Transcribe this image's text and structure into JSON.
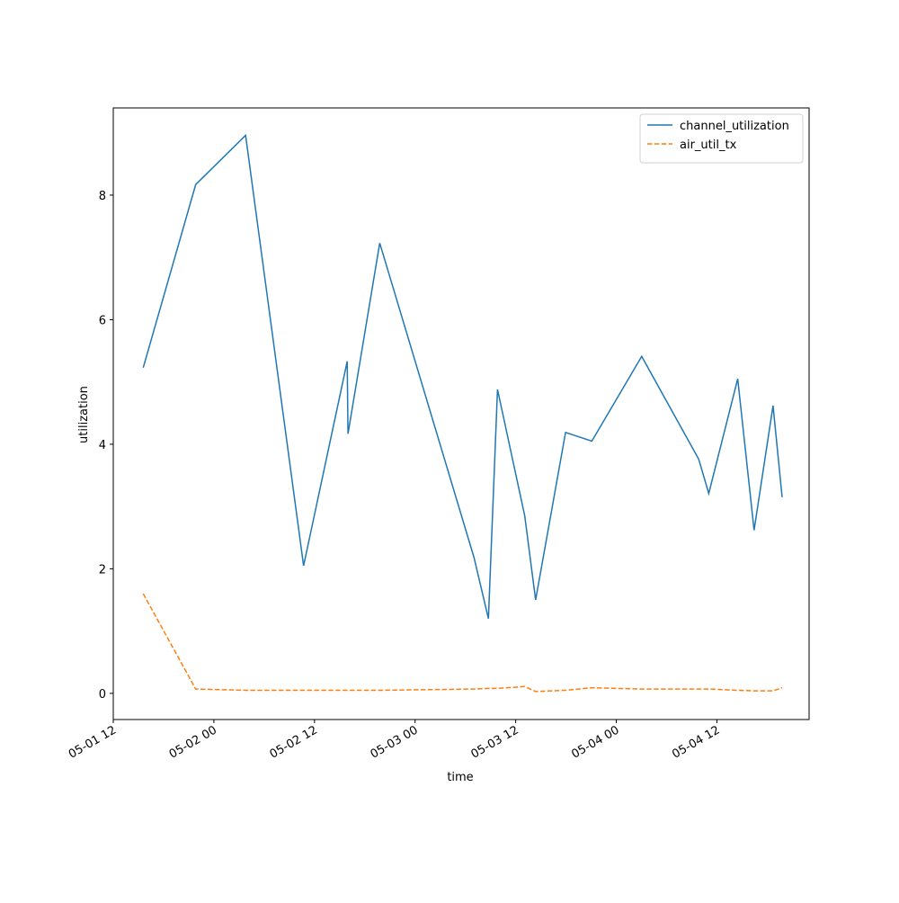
{
  "chart_data": {
    "type": "line",
    "xlabel": "time",
    "ylabel": "utilization",
    "x": [
      "05-01 15:34",
      "05-01 21:50",
      "05-02 03:47",
      "05-02 10:42",
      "05-02 15:54",
      "05-02 16:00",
      "05-02 19:47",
      "05-03 07:02",
      "05-03 08:45",
      "05-03 09:50",
      "05-03 13:05",
      "05-03 14:23",
      "05-03 17:57",
      "05-03 21:05",
      "05-04 03:02",
      "05-04 09:50",
      "05-04 11:02",
      "05-04 14:29",
      "05-04 16:26",
      "05-04 18:42",
      "05-04 19:47",
      "05-04 20:00"
    ],
    "series": [
      {
        "name": "channel_utilization",
        "color": "#1f77b4",
        "dash": "solid",
        "values": [
          5.23,
          8.17,
          8.96,
          2.05,
          5.33,
          4.17,
          7.23,
          2.18,
          1.2,
          4.88,
          2.85,
          1.5,
          4.19,
          4.05,
          5.41,
          3.76,
          3.21,
          5.05,
          2.62,
          4.62,
          3.15,
          null
        ]
      },
      {
        "name": "air_util_tx",
        "color": "#ff7f0e",
        "dash": "dashed",
        "values": [
          1.6,
          0.07,
          0.05,
          0.05,
          0.05,
          0.05,
          0.05,
          0.07,
          0.08,
          0.08,
          0.11,
          0.03,
          0.05,
          0.09,
          0.07,
          0.07,
          0.07,
          0.05,
          0.04,
          0.04,
          0.09,
          null
        ]
      }
    ],
    "xlim": [
      "05-01 12",
      "05-04 23"
    ],
    "xticks": [
      "05-01 12",
      "05-02 00",
      "05-02 12",
      "05-03 00",
      "05-03 12",
      "05-04 00",
      "05-04 12"
    ],
    "ylim": [
      -0.42,
      9.4
    ],
    "yticks": [
      0,
      2,
      4,
      6,
      8
    ],
    "legend": "upper right"
  }
}
